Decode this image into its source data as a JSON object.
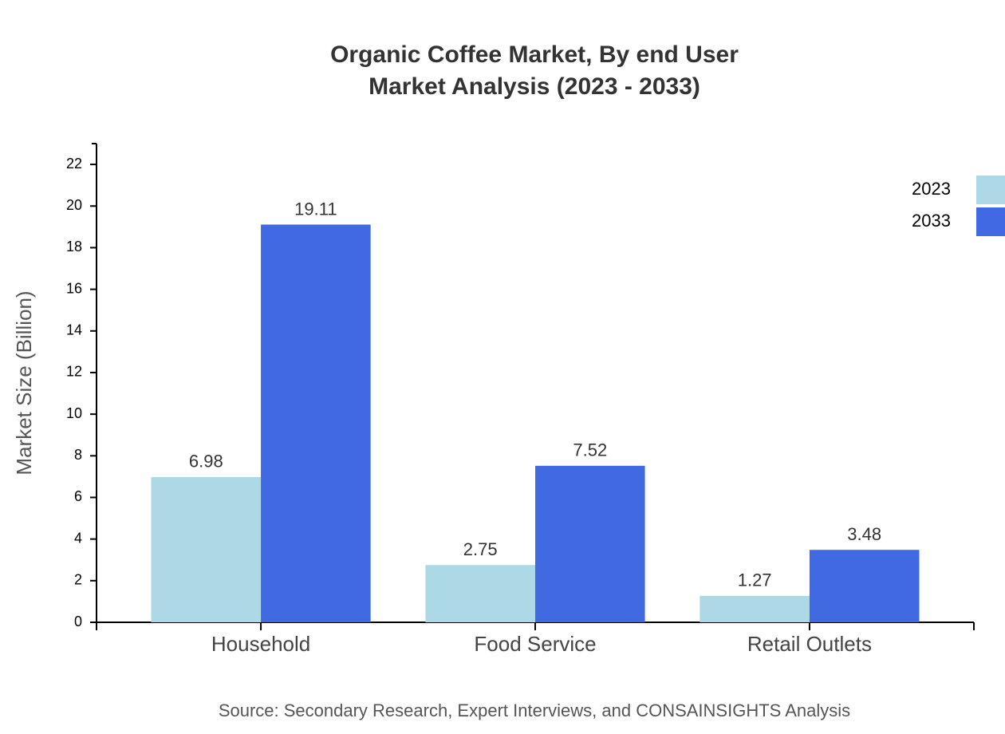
{
  "chart_data": {
    "type": "bar",
    "title": "Organic Coffee Market, By end User",
    "subtitle": "Market Analysis (2023 - 2033)",
    "y_label": "Market Size (Billion)",
    "source": "Source: Secondary Research, Expert Interviews, and CONSAINSIGHTS Analysis",
    "categories": [
      "Household",
      "Food Service",
      "Retail Outlets"
    ],
    "series": [
      {
        "name": "2023",
        "color": "#add8e6",
        "values": [
          6.98,
          2.75,
          1.27
        ]
      },
      {
        "name": "2033",
        "color": "#4169e1",
        "values": [
          19.11,
          7.52,
          3.48
        ]
      }
    ],
    "ylim": [
      0,
      23
    ],
    "yticks": [
      0,
      2,
      4,
      6,
      8,
      10,
      12,
      14,
      16,
      18,
      20,
      22
    ],
    "legend": "top-right"
  }
}
